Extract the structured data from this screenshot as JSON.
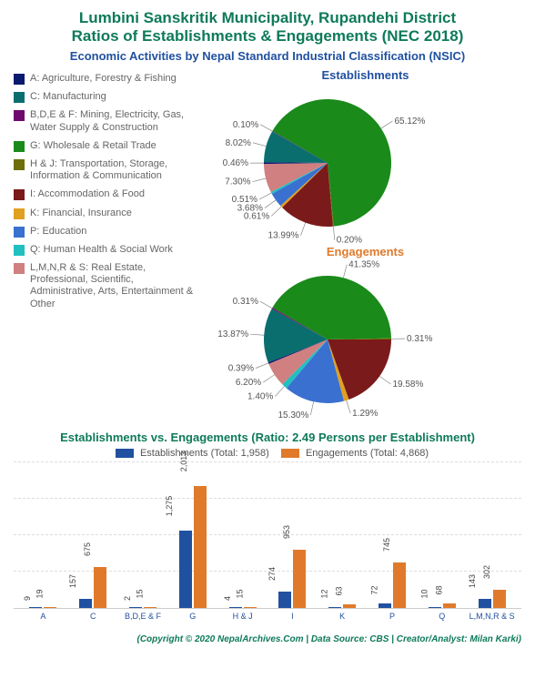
{
  "header": {
    "title1": "Lumbini Sanskritik Municipality, Rupandehi District",
    "title2": "Ratios of Establishments & Engagements (NEC 2018)",
    "subtitle": "Economic Activities by Nepal Standard Industrial Classification (NSIC)"
  },
  "categories": [
    {
      "code": "A",
      "label": "A: Agriculture, Forestry & Fishing",
      "color": "#0a1a6e"
    },
    {
      "code": "C",
      "label": "C: Manufacturing",
      "color": "#0a6e6e"
    },
    {
      "code": "B,D,E & F",
      "label": "B,D,E & F: Mining, Electricity, Gas, Water Supply & Construction",
      "color": "#6e0a6e"
    },
    {
      "code": "G",
      "label": "G: Wholesale & Retail Trade",
      "color": "#1a8a1a"
    },
    {
      "code": "H & J",
      "label": "H & J: Transportation, Storage, Information & Communication",
      "color": "#6e6e0a"
    },
    {
      "code": "I",
      "label": "I: Accommodation & Food",
      "color": "#7a1a1a"
    },
    {
      "code": "K",
      "label": "K: Financial, Insurance",
      "color": "#e0a020"
    },
    {
      "code": "P",
      "label": "P: Education",
      "color": "#3a70d0"
    },
    {
      "code": "Q",
      "label": "Q: Human Health & Social Work",
      "color": "#20c0c0"
    },
    {
      "code": "L,M,N,R & S",
      "label": "L,M,N,R & S: Real Estate, Professional, Scientific, Administrative, Arts, Entertainment & Other",
      "color": "#d08080"
    }
  ],
  "pie1": {
    "title": "Establishments",
    "title_color": "#2050a0",
    "slices": [
      {
        "pct": 65.12,
        "color": "#1a8a1a",
        "label": "65.12%"
      },
      {
        "pct": 0.2,
        "color": "#6e6e0a",
        "label": "0.20%"
      },
      {
        "pct": 13.99,
        "color": "#7a1a1a",
        "label": "13.99%"
      },
      {
        "pct": 0.61,
        "color": "#e0a020",
        "label": "0.61%"
      },
      {
        "pct": 3.68,
        "color": "#3a70d0",
        "label": "3.68%"
      },
      {
        "pct": 0.51,
        "color": "#20c0c0",
        "label": "0.51%"
      },
      {
        "pct": 7.3,
        "color": "#d08080",
        "label": "7.30%"
      },
      {
        "pct": 0.46,
        "color": "#0a1a6e",
        "label": "0.46%"
      },
      {
        "pct": 8.02,
        "color": "#0a6e6e",
        "label": "8.02%"
      },
      {
        "pct": 0.1,
        "color": "#6e0a6e",
        "label": "0.10%"
      }
    ]
  },
  "pie2": {
    "title": "Engagements",
    "title_color": "#e07a2a",
    "slices": [
      {
        "pct": 41.35,
        "color": "#1a8a1a",
        "label": "41.35%"
      },
      {
        "pct": 0.31,
        "color": "#6e6e0a",
        "label": "0.31%"
      },
      {
        "pct": 19.58,
        "color": "#7a1a1a",
        "label": "19.58%"
      },
      {
        "pct": 1.29,
        "color": "#e0a020",
        "label": "1.29%"
      },
      {
        "pct": 15.3,
        "color": "#3a70d0",
        "label": "15.30%"
      },
      {
        "pct": 1.4,
        "color": "#20c0c0",
        "label": "1.40%"
      },
      {
        "pct": 6.2,
        "color": "#d08080",
        "label": "6.20%"
      },
      {
        "pct": 0.39,
        "color": "#0a1a6e",
        "label": "0.39%"
      },
      {
        "pct": 13.87,
        "color": "#0a6e6e",
        "label": "13.87%"
      },
      {
        "pct": 0.31,
        "color": "#6e0a6e",
        "label": "0.31%"
      }
    ]
  },
  "bar": {
    "title": "Establishments vs. Engagements (Ratio: 2.49 Persons per Establishment)",
    "legend_est": "Establishments (Total: 1,958)",
    "legend_eng": "Engagements (Total: 4,868)",
    "color_est": "#2050a0",
    "color_eng": "#e07a2a",
    "max": 2100,
    "data": [
      {
        "cat": "A",
        "est": 9,
        "eng": 19
      },
      {
        "cat": "C",
        "est": 157,
        "eng": 675
      },
      {
        "cat": "B,D,E & F",
        "est": 2,
        "eng": 15
      },
      {
        "cat": "G",
        "est": 1275,
        "eng": 2013,
        "est_label": "1,275",
        "eng_label": "2,013"
      },
      {
        "cat": "H & J",
        "est": 4,
        "eng": 15
      },
      {
        "cat": "I",
        "est": 274,
        "eng": 953
      },
      {
        "cat": "K",
        "est": 12,
        "eng": 63
      },
      {
        "cat": "P",
        "est": 72,
        "eng": 745
      },
      {
        "cat": "Q",
        "est": 10,
        "eng": 68
      },
      {
        "cat": "L,M,N,R & S",
        "est": 143,
        "eng": 302
      }
    ]
  },
  "footer": "(Copyright © 2020 NepalArchives.Com | Data Source: CBS | Creator/Analyst: Milan Karki)"
}
